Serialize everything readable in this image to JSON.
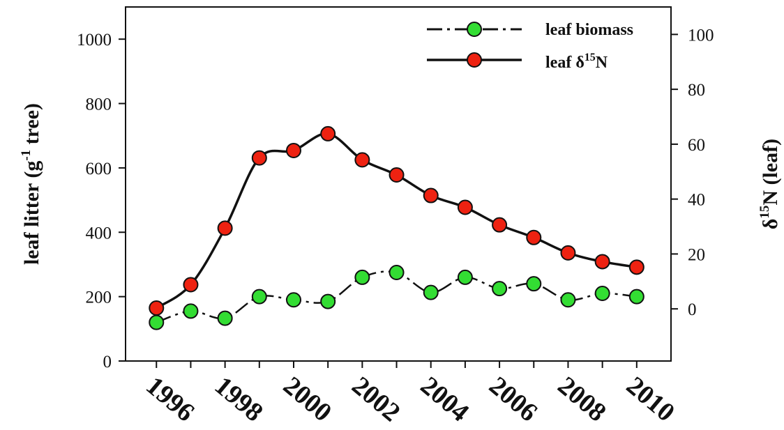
{
  "chart_data": {
    "type": "line",
    "x": [
      1996,
      1997,
      1998,
      1999,
      2000,
      2001,
      2002,
      2003,
      2004,
      2005,
      2006,
      2007,
      2008,
      2009,
      2010
    ],
    "x_tick_labels": [
      "1996",
      "1998",
      "2000",
      "2002",
      "2004",
      "2006",
      "2008",
      "2010"
    ],
    "xlim": [
      1995.1,
      2011
    ],
    "left_axis": {
      "label_base": "leaf litter (g",
      "label_sup": "-1",
      "label_tail": " tree)",
      "ylim": [
        0,
        1100
      ],
      "ticks": [
        "0",
        "200",
        "400",
        "600",
        "800",
        "1000"
      ]
    },
    "right_axis": {
      "label_prefix": "δ",
      "label_sup": "15",
      "label_tail": "N (leaf)",
      "ylim": [
        -19,
        110
      ],
      "ticks": [
        "0",
        "20",
        "40",
        "60",
        "80",
        "100"
      ]
    },
    "series": [
      {
        "name": "leaf biomass",
        "axis": "left",
        "style": "dash-dot",
        "marker_color": "#33dd33",
        "values": [
          120,
          155,
          133,
          200,
          190,
          185,
          260,
          275,
          213,
          260,
          225,
          240,
          190,
          210,
          200
        ]
      },
      {
        "name_prefix": "leaf δ",
        "name_sup": "15",
        "name_tail": "N",
        "axis": "right",
        "style": "solid",
        "marker_color": "#ee2211",
        "values": [
          0.3,
          8.8,
          29.4,
          55,
          57.7,
          63.8,
          54.3,
          48.8,
          41.3,
          37,
          30.6,
          26,
          20.4,
          17.2,
          15.2
        ]
      }
    ],
    "legend_position": "top-right",
    "grid": false
  }
}
